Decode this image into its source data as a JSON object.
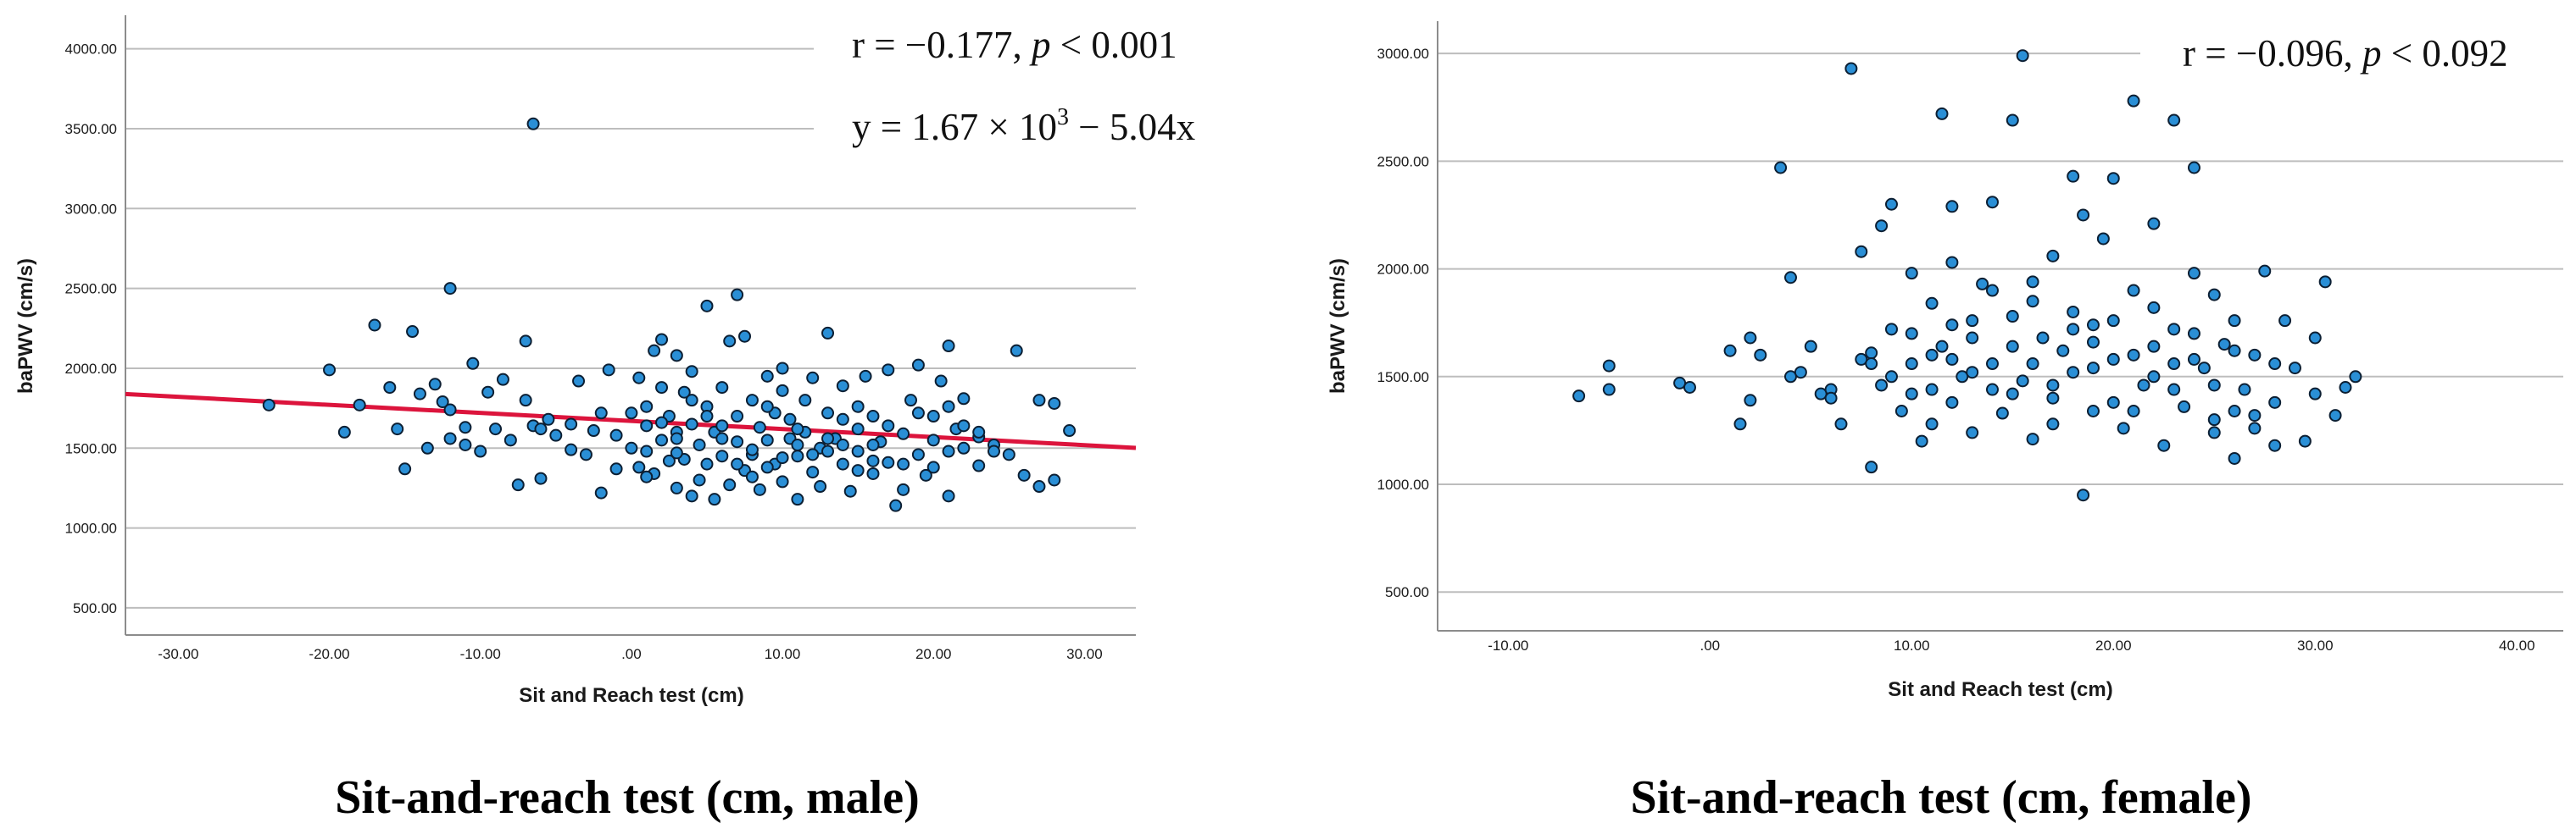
{
  "chart_data": [
    {
      "type": "scatter",
      "group": "male",
      "xlabel": "Sit and Reach test (cm)",
      "ylabel": "baPWV (cm/s)",
      "caption": "Sit-and-reach test (cm, male)",
      "xlim": [
        -33.5,
        33.4
      ],
      "ylim": [
        330,
        4210
      ],
      "xticks": [
        -30,
        -20,
        -10,
        0,
        10,
        20,
        30
      ],
      "xtick_labels": [
        "-30.00",
        "-20.00",
        "-10.00",
        ".00",
        "10.00",
        "20.00",
        "30.00"
      ],
      "yticks": [
        500,
        1000,
        1500,
        2000,
        2500,
        3000,
        3500,
        4000
      ],
      "ytick_labels": [
        "500.00",
        "1000.00",
        "1500.00",
        "2000.00",
        "2500.00",
        "3000.00",
        "3500.00",
        "4000.00"
      ],
      "annotations": {
        "corr": {
          "r_label": "r = −0.177, ",
          "p_symbol": "p",
          "p_value": " < 0.001"
        },
        "equation": {
          "prefix": "y = 1.67 × 10",
          "exponent": "3",
          "suffix": " − 5.04x"
        }
      },
      "regression": {
        "intercept": 1670,
        "slope": -5.04,
        "x_range": [
          -33.5,
          33.4
        ]
      },
      "points": [
        [
          -24,
          1770
        ],
        [
          -20,
          1990
        ],
        [
          -19,
          1600
        ],
        [
          -18,
          1770
        ],
        [
          -17,
          2270
        ],
        [
          -16,
          1880
        ],
        [
          -15.5,
          1620
        ],
        [
          -15,
          1370
        ],
        [
          -14.5,
          2230
        ],
        [
          -14,
          1840
        ],
        [
          -13.5,
          1500
        ],
        [
          -13,
          1900
        ],
        [
          -12.5,
          1790
        ],
        [
          -12,
          1560
        ],
        [
          -12,
          2500
        ],
        [
          -12,
          1740
        ],
        [
          -11,
          1520
        ],
        [
          -11,
          1630
        ],
        [
          -10.5,
          2030
        ],
        [
          -10,
          1480
        ],
        [
          -9.5,
          1850
        ],
        [
          -9,
          1620
        ],
        [
          -8.5,
          1930
        ],
        [
          -8,
          1550
        ],
        [
          -7.5,
          1270
        ],
        [
          -7,
          1800
        ],
        [
          -7,
          2170
        ],
        [
          -6.5,
          1640
        ],
        [
          -6,
          1310
        ],
        [
          -6.5,
          3530
        ],
        [
          -6,
          1620
        ],
        [
          -5.5,
          1680
        ],
        [
          -5,
          1580
        ],
        [
          -4,
          1650
        ],
        [
          -4,
          1490
        ],
        [
          -3.5,
          1920
        ],
        [
          -3,
          1460
        ],
        [
          -2.5,
          1610
        ],
        [
          -2,
          1220
        ],
        [
          -1.5,
          1990
        ],
        [
          -1,
          1580
        ],
        [
          -1,
          1370
        ],
        [
          0,
          1720
        ],
        [
          0,
          1500
        ],
        [
          0.5,
          1940
        ],
        [
          0.5,
          1380
        ],
        [
          1,
          1760
        ],
        [
          1,
          1640
        ],
        [
          1.5,
          1340
        ],
        [
          1.5,
          2110
        ],
        [
          2,
          1550
        ],
        [
          2,
          1880
        ],
        [
          2,
          2180
        ],
        [
          2.5,
          1420
        ],
        [
          2.5,
          1700
        ],
        [
          3,
          1250
        ],
        [
          3,
          1600
        ],
        [
          3,
          2080
        ],
        [
          3.5,
          1850
        ],
        [
          3.5,
          1430
        ],
        [
          4,
          1200
        ],
        [
          4,
          1650
        ],
        [
          4,
          1980
        ],
        [
          4.5,
          1520
        ],
        [
          4.5,
          1300
        ],
        [
          5,
          1760
        ],
        [
          5,
          2390
        ],
        [
          5,
          1400
        ],
        [
          5.5,
          1180
        ],
        [
          5.5,
          1600
        ],
        [
          6,
          1880
        ],
        [
          6,
          1450
        ],
        [
          6.5,
          1270
        ],
        [
          6.5,
          2170
        ],
        [
          7,
          1700
        ],
        [
          7,
          1540
        ],
        [
          7,
          2460
        ],
        [
          7.5,
          1360
        ],
        [
          7.5,
          2200
        ],
        [
          8,
          1800
        ],
        [
          8,
          1460
        ],
        [
          8.5,
          1630
        ],
        [
          8.5,
          1240
        ],
        [
          9,
          1950
        ],
        [
          9,
          1550
        ],
        [
          9.5,
          1400
        ],
        [
          9.5,
          1720
        ],
        [
          10,
          1290
        ],
        [
          10,
          1860
        ],
        [
          10,
          2000
        ],
        [
          10.5,
          1560
        ],
        [
          10.5,
          1680
        ],
        [
          11,
          1180
        ],
        [
          11,
          1450
        ],
        [
          11.5,
          1800
        ],
        [
          11.5,
          1600
        ],
        [
          12,
          1350
        ],
        [
          12,
          1940
        ],
        [
          12.5,
          1500
        ],
        [
          12.5,
          1260
        ],
        [
          13,
          1720
        ],
        [
          13,
          2220
        ],
        [
          13.5,
          1560
        ],
        [
          14,
          1400
        ],
        [
          14,
          1890
        ],
        [
          14.5,
          1230
        ],
        [
          15,
          1620
        ],
        [
          15,
          1480
        ],
        [
          15.5,
          1950
        ],
        [
          16,
          1340
        ],
        [
          16,
          1700
        ],
        [
          16.5,
          1540
        ],
        [
          17,
          1990
        ],
        [
          17,
          1410
        ],
        [
          17.5,
          1140
        ],
        [
          18,
          1590
        ],
        [
          18,
          1240
        ],
        [
          18.5,
          1800
        ],
        [
          19,
          1460
        ],
        [
          19,
          2020
        ],
        [
          19.5,
          1330
        ],
        [
          20,
          1550
        ],
        [
          20,
          1700
        ],
        [
          20.5,
          1920
        ],
        [
          21,
          1480
        ],
        [
          21,
          1200
        ],
        [
          21,
          2140
        ],
        [
          21.5,
          1620
        ],
        [
          22,
          1500
        ],
        [
          22,
          1810
        ],
        [
          23,
          1570
        ],
        [
          23,
          1390
        ],
        [
          24,
          1520
        ],
        [
          25,
          1460
        ],
        [
          25.5,
          2110
        ],
        [
          26,
          1330
        ],
        [
          27,
          1800
        ],
        [
          27,
          1260
        ],
        [
          28,
          1780
        ],
        [
          28,
          1300
        ],
        [
          29,
          1610
        ],
        [
          8,
          1490
        ],
        [
          9,
          1380
        ],
        [
          11,
          1620
        ],
        [
          13,
          1480
        ],
        [
          14,
          1680
        ],
        [
          15,
          1760
        ],
        [
          16,
          1520
        ],
        [
          18,
          1400
        ],
        [
          20,
          1380
        ],
        [
          22,
          1640
        ],
        [
          24,
          1480
        ],
        [
          6,
          1560
        ],
        [
          3,
          1470
        ],
        [
          1,
          1320
        ],
        [
          -2,
          1720
        ],
        [
          12,
          1460
        ],
        [
          10,
          1440
        ],
        [
          7,
          1400
        ],
        [
          4,
          1800
        ],
        [
          2,
          1660
        ],
        [
          15,
          1360
        ],
        [
          17,
          1640
        ],
        [
          19,
          1720
        ],
        [
          21,
          1760
        ],
        [
          23,
          1600
        ],
        [
          5,
          1700
        ],
        [
          13,
          1560
        ],
        [
          9,
          1760
        ],
        [
          11,
          1520
        ],
        [
          6,
          1640
        ],
        [
          8,
          1320
        ],
        [
          14,
          1520
        ],
        [
          16,
          1420
        ],
        [
          3,
          1560
        ],
        [
          1,
          1480
        ]
      ]
    },
    {
      "type": "scatter",
      "group": "female",
      "xlabel": "Sit and Reach test (cm)",
      "ylabel": "baPWV (cm/s)",
      "caption": "Sit-and-reach test (cm, female)",
      "xlim": [
        -13.5,
        42.3
      ],
      "ylim": [
        320,
        3150
      ],
      "xticks": [
        -10,
        0,
        10,
        20,
        30,
        40
      ],
      "xtick_labels": [
        "-10.00",
        ".00",
        "10.00",
        "20.00",
        "30.00",
        "40.00"
      ],
      "yticks": [
        500,
        1000,
        1500,
        2000,
        2500,
        3000
      ],
      "ytick_labels": [
        "500.00",
        "1000.00",
        "1500.00",
        "2000.00",
        "2500.00",
        "3000.00"
      ],
      "annotations": {
        "corr": {
          "r_label": "r = −0.096, ",
          "p_symbol": "p",
          "p_value": " < 0.092"
        }
      },
      "points": [
        [
          -6.5,
          1410
        ],
        [
          -5,
          1550
        ],
        [
          -5,
          1440
        ],
        [
          -1.5,
          1470
        ],
        [
          -1,
          1450
        ],
        [
          1,
          1620
        ],
        [
          1.5,
          1280
        ],
        [
          2,
          1680
        ],
        [
          2,
          1390
        ],
        [
          2.5,
          1600
        ],
        [
          3.5,
          2470
        ],
        [
          4,
          1960
        ],
        [
          4,
          1500
        ],
        [
          4.5,
          1520
        ],
        [
          5,
          1640
        ],
        [
          5.5,
          1420
        ],
        [
          6,
          1440
        ],
        [
          6.5,
          1280
        ],
        [
          7,
          2930
        ],
        [
          7.5,
          1580
        ],
        [
          7.5,
          2080
        ],
        [
          8,
          1080
        ],
        [
          8,
          1610
        ],
        [
          8.5,
          2200
        ],
        [
          8.5,
          1460
        ],
        [
          9,
          2300
        ],
        [
          9,
          1720
        ],
        [
          9.5,
          1340
        ],
        [
          10,
          1980
        ],
        [
          10,
          1560
        ],
        [
          10.5,
          1200
        ],
        [
          11,
          1440
        ],
        [
          11,
          1840
        ],
        [
          11.5,
          2720
        ],
        [
          11.5,
          1640
        ],
        [
          12,
          2030
        ],
        [
          12,
          1380
        ],
        [
          12,
          2290
        ],
        [
          12.5,
          1500
        ],
        [
          13,
          1760
        ],
        [
          13,
          1240
        ],
        [
          13.5,
          1930
        ],
        [
          14,
          1560
        ],
        [
          14,
          2310
        ],
        [
          14.5,
          1330
        ],
        [
          15,
          1780
        ],
        [
          15,
          2690
        ],
        [
          15.5,
          1480
        ],
        [
          15.5,
          2990
        ],
        [
          16,
          1940
        ],
        [
          16,
          1210
        ],
        [
          16.5,
          1680
        ],
        [
          17,
          2060
        ],
        [
          17,
          1400
        ],
        [
          17.5,
          1620
        ],
        [
          18,
          2430
        ],
        [
          18,
          1520
        ],
        [
          18.5,
          950
        ],
        [
          18.5,
          2250
        ],
        [
          19,
          1740
        ],
        [
          19,
          1340
        ],
        [
          19.5,
          2140
        ],
        [
          20,
          1580
        ],
        [
          20,
          2420
        ],
        [
          20.5,
          1260
        ],
        [
          21,
          1900
        ],
        [
          21,
          2780
        ],
        [
          21.5,
          1460
        ],
        [
          22,
          2210
        ],
        [
          22,
          1640
        ],
        [
          22.5,
          1180
        ],
        [
          23,
          1720
        ],
        [
          23,
          2690
        ],
        [
          23.5,
          1360
        ],
        [
          24,
          1980
        ],
        [
          24,
          2470
        ],
        [
          24.5,
          1540
        ],
        [
          25,
          1300
        ],
        [
          25,
          1880
        ],
        [
          25.5,
          1650
        ],
        [
          26,
          1120
        ],
        [
          26,
          1760
        ],
        [
          26.5,
          1440
        ],
        [
          27,
          1260
        ],
        [
          27,
          1600
        ],
        [
          27.5,
          1990
        ],
        [
          28,
          1380
        ],
        [
          28.5,
          1760
        ],
        [
          29,
          1540
        ],
        [
          29.5,
          1200
        ],
        [
          30,
          1680
        ],
        [
          30,
          1420
        ],
        [
          30.5,
          1940
        ],
        [
          31,
          1320
        ],
        [
          31.5,
          1450
        ],
        [
          32,
          1500
        ],
        [
          9,
          1500
        ],
        [
          10,
          1700
        ],
        [
          11,
          1600
        ],
        [
          12,
          1740
        ],
        [
          13,
          1520
        ],
        [
          14,
          1440
        ],
        [
          15,
          1640
        ],
        [
          16,
          1560
        ],
        [
          17,
          1460
        ],
        [
          18,
          1720
        ],
        [
          19,
          1540
        ],
        [
          20,
          1380
        ],
        [
          21,
          1600
        ],
        [
          22,
          1500
        ],
        [
          23,
          1440
        ],
        [
          24,
          1580
        ],
        [
          25,
          1460
        ],
        [
          26,
          1620
        ],
        [
          27,
          1320
        ],
        [
          28,
          1560
        ],
        [
          14,
          1900
        ],
        [
          16,
          1850
        ],
        [
          18,
          1800
        ],
        [
          20,
          1760
        ],
        [
          22,
          1820
        ],
        [
          24,
          1700
        ],
        [
          13,
          1680
        ],
        [
          15,
          1420
        ],
        [
          17,
          1280
        ],
        [
          19,
          1660
        ],
        [
          21,
          1340
        ],
        [
          23,
          1560
        ],
        [
          25,
          1240
        ],
        [
          11,
          1280
        ],
        [
          12,
          1580
        ],
        [
          10,
          1420
        ],
        [
          8,
          1560
        ],
        [
          6,
          1400
        ],
        [
          26,
          1340
        ],
        [
          28,
          1180
        ]
      ]
    }
  ]
}
